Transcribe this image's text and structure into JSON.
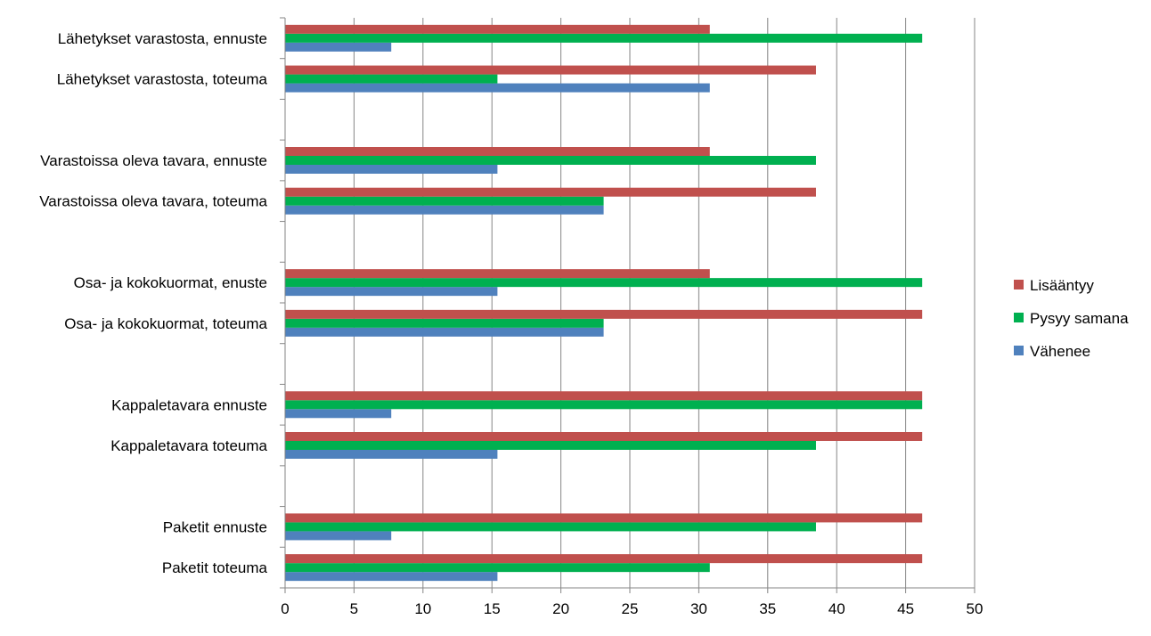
{
  "chart_data": {
    "type": "bar",
    "orientation": "horizontal",
    "title": "",
    "xlabel": "",
    "ylabel": "",
    "xlim": [
      0,
      50
    ],
    "xticks": [
      0,
      5,
      10,
      15,
      20,
      25,
      30,
      35,
      40,
      45,
      50
    ],
    "grid": "vertical",
    "legend_position": "right",
    "categories": [
      "Paketit toteuma",
      "Paketit ennuste",
      "",
      "Kappaletavara toteuma",
      "Kappaletavara ennuste",
      "",
      "Osa- ja kokokuormat, toteuma",
      "Osa- ja kokokuormat, enuste",
      "",
      "Varastoissa oleva tavara, toteuma",
      "Varastoissa oleva tavara, ennuste",
      "",
      "Lähetykset varastosta, toteuma",
      "Lähetykset varastosta, ennuste"
    ],
    "series": [
      {
        "name": "Vähenee",
        "color": "#4f81bd",
        "values": [
          15.4,
          7.7,
          null,
          15.4,
          7.7,
          null,
          23.1,
          15.4,
          null,
          23.1,
          15.4,
          null,
          30.8,
          7.7
        ]
      },
      {
        "name": "Pysyy samana",
        "color": "#00b050",
        "values": [
          30.8,
          38.5,
          null,
          38.5,
          46.2,
          null,
          23.1,
          46.2,
          null,
          23.1,
          38.5,
          null,
          15.4,
          46.2
        ]
      },
      {
        "name": "Lisääntyy",
        "color": "#c0504d",
        "values": [
          46.2,
          46.2,
          null,
          46.2,
          46.2,
          null,
          46.2,
          30.8,
          null,
          38.5,
          30.8,
          null,
          38.5,
          30.8
        ]
      }
    ],
    "legend_order": [
      "Lisääntyy",
      "Pysyy samana",
      "Vähenee"
    ]
  }
}
